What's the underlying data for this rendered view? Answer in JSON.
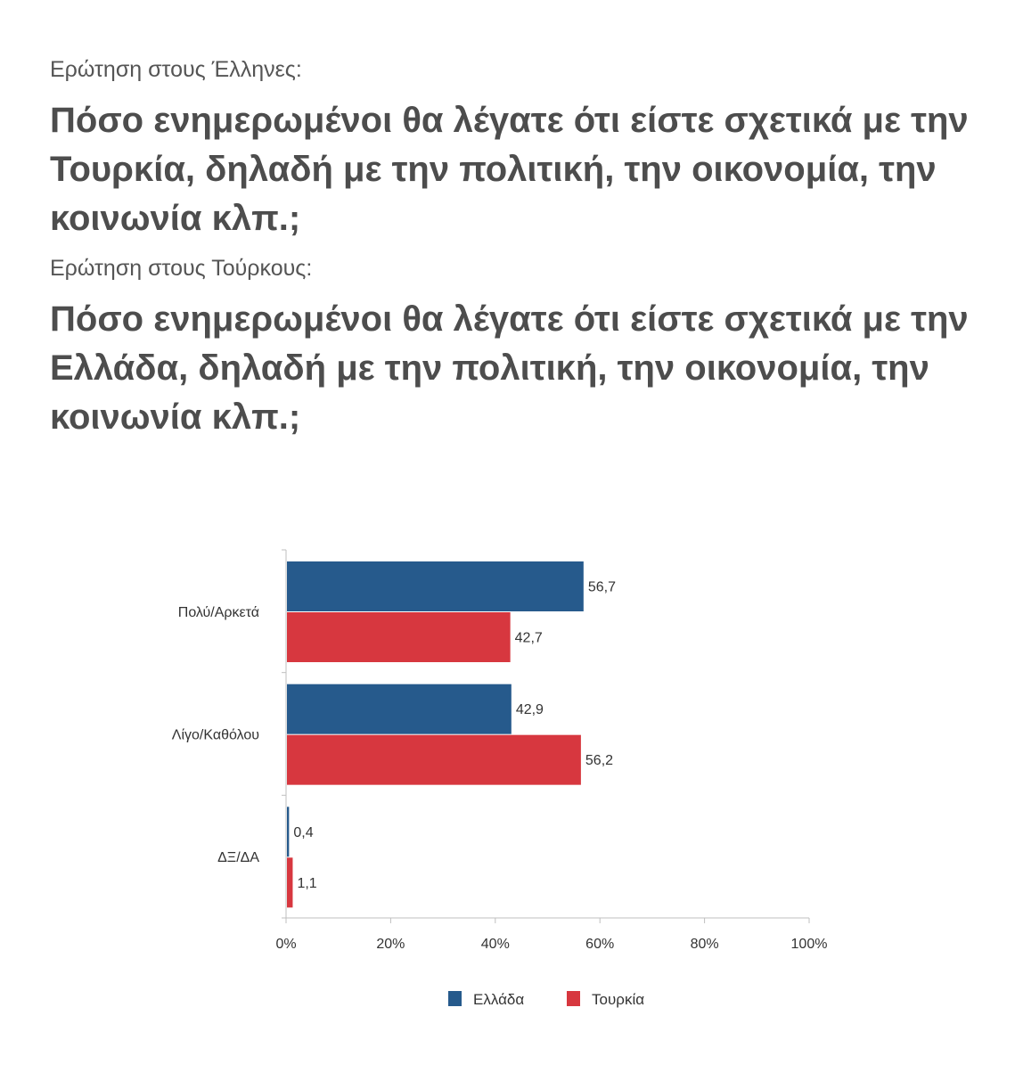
{
  "questions": [
    {
      "label": "Ερώτηση στους Έλληνες:",
      "text": "Πόσο ενημερωμένοι θα λέγατε ότι είστε σχετικά με την Τουρκία, δηλαδή με την πολιτική, την οικονομία, την κοινωνία κλπ.;"
    },
    {
      "label": "Ερώτηση στους Τούρκους:",
      "text": "Πόσο ενημερωμένοι θα λέγατε ότι είστε σχετικά με την Ελλάδα, δηλαδή με την πολιτική, την οικονομία, την κοινωνία κλπ.;"
    }
  ],
  "chart_data": {
    "type": "bar",
    "orientation": "horizontal",
    "categories": [
      "Πολύ/Αρκετά",
      "Λίγο/Καθόλου",
      "ΔΞ/ΔΑ"
    ],
    "series": [
      {
        "name": "Ελλάδα",
        "color": "#265a8c",
        "values": [
          56.7,
          42.9,
          0.4
        ],
        "value_labels": [
          "56,7",
          "42,9",
          "0,4"
        ]
      },
      {
        "name": "Τουρκία",
        "color": "#d7373f",
        "values": [
          42.7,
          56.2,
          1.1
        ],
        "value_labels": [
          "42,7",
          "56,2",
          "1,1"
        ]
      }
    ],
    "xlim": [
      0,
      100
    ],
    "xticks": [
      "0%",
      "20%",
      "40%",
      "60%",
      "80%",
      "100%"
    ],
    "grid": false,
    "legend_position": "bottom"
  }
}
